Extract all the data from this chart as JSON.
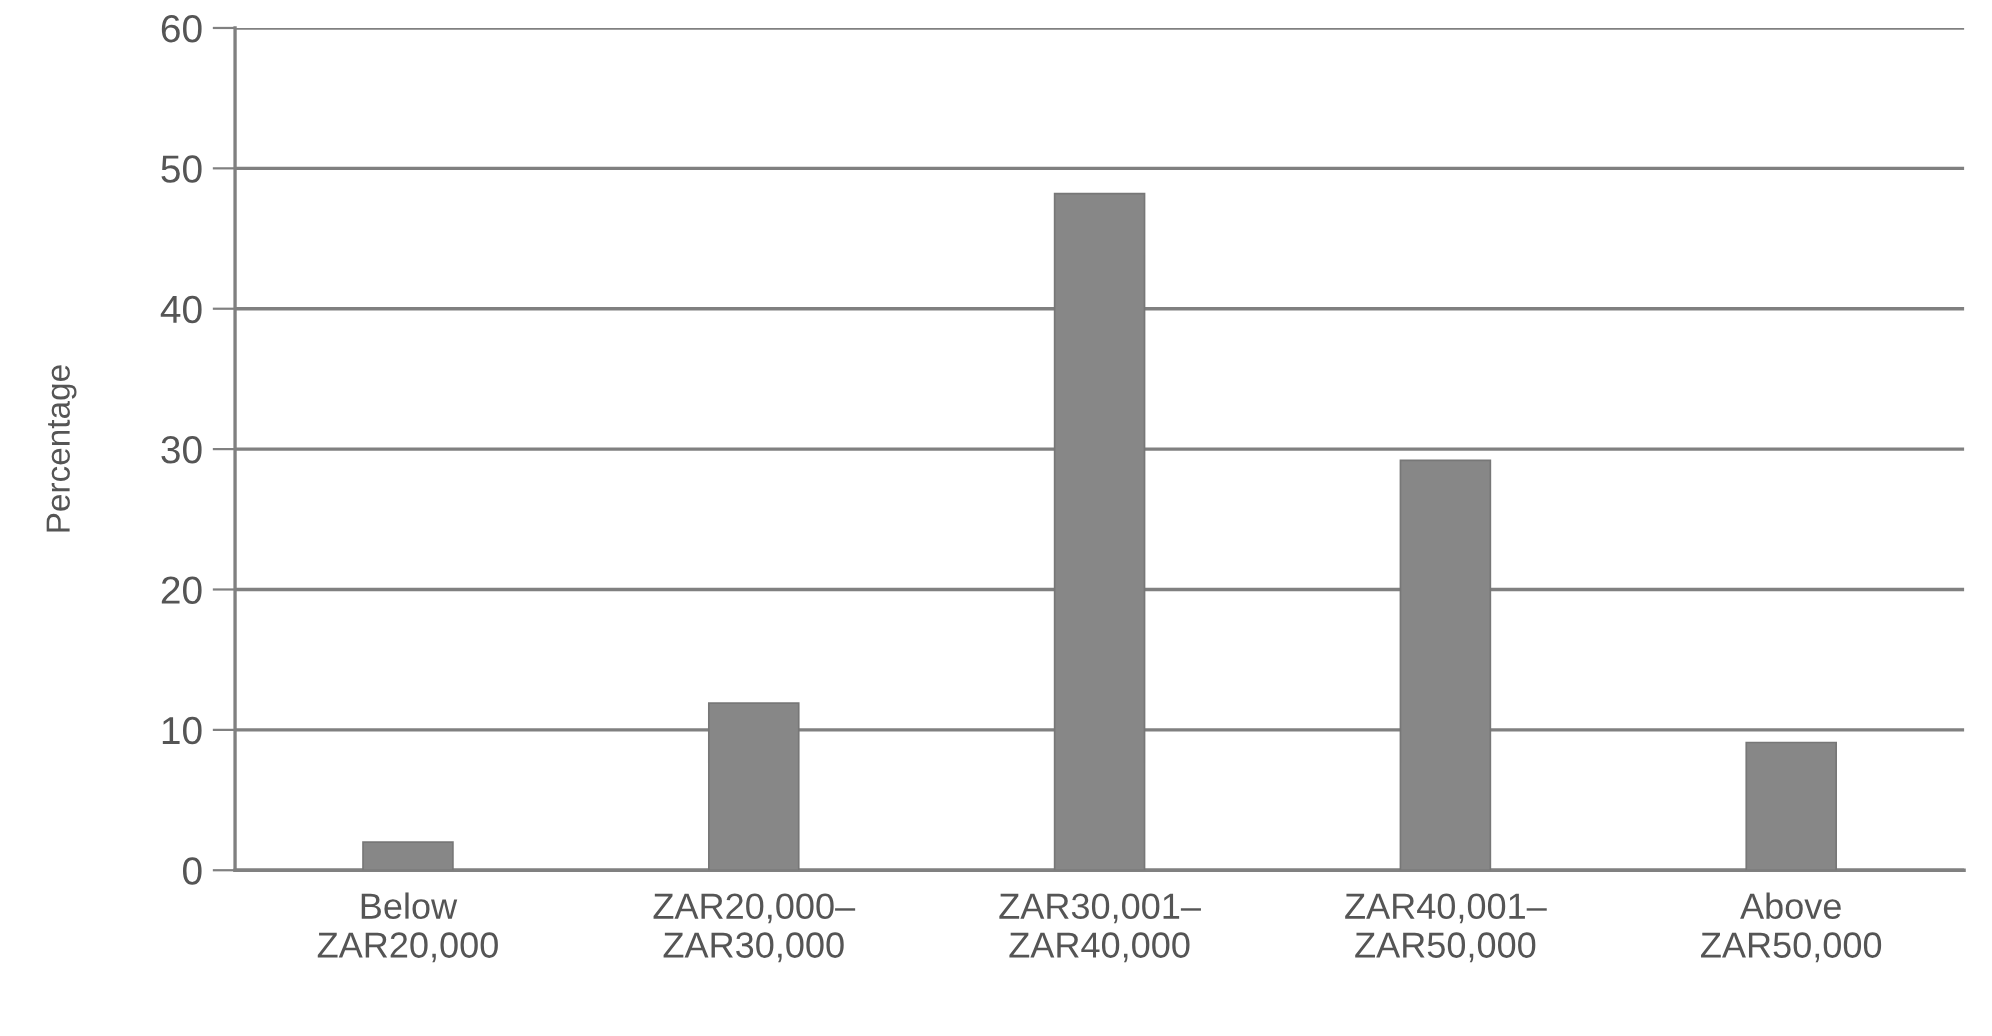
{
  "chart_data": {
    "type": "bar",
    "ylabel": "Percentage",
    "categories": [
      "Below\nZAR20,000",
      "ZAR20,000–\nZAR30,000",
      "ZAR30,001–\nZAR40,000",
      "ZAR40,001–\nZAR50,000",
      "Above\nZAR50,000"
    ],
    "values": [
      2.0,
      11.9,
      48.2,
      29.2,
      9.1
    ],
    "color": "#878787",
    "ylim": [
      0,
      60
    ],
    "yticks": [
      0,
      10,
      20,
      30,
      40,
      50,
      60
    ],
    "grid": "y",
    "legend": false
  }
}
